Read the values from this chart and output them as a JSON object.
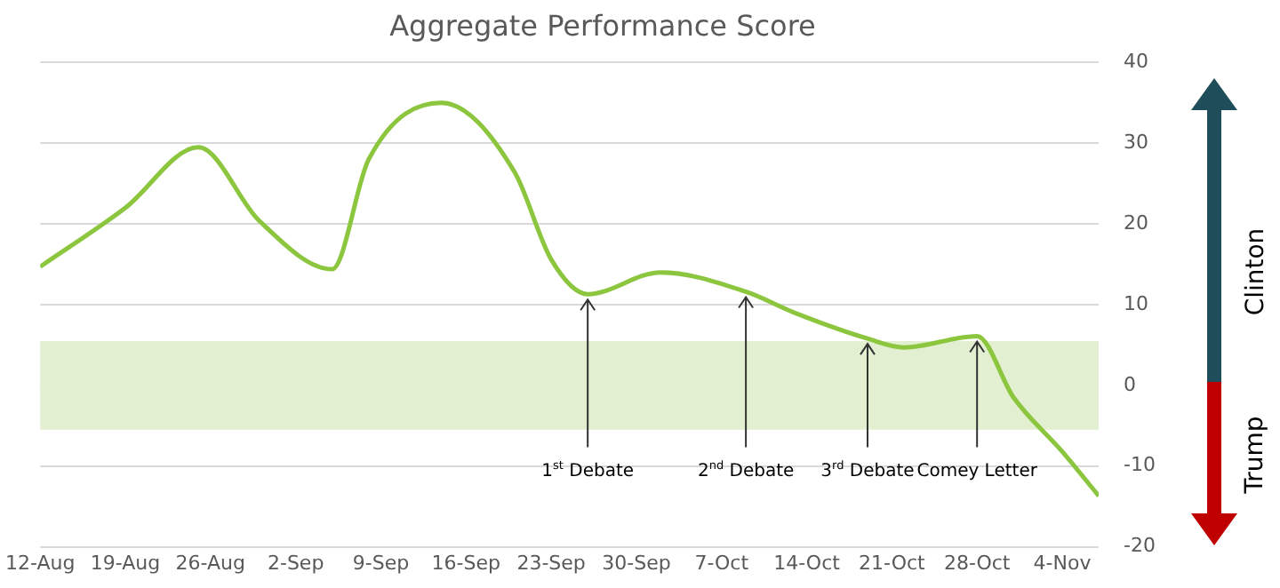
{
  "chart_data": {
    "type": "line",
    "title": "Aggregate Performance Score",
    "x": [
      "--08-12",
      "--08-19",
      "--08-25",
      "--08-30",
      "--09-05",
      "--09-08",
      "--09-14",
      "--09-20",
      "--09-23",
      "--09-26",
      "--10-02",
      "--10-09",
      "--10-13",
      "--10-19",
      "--10-22",
      "--10-28",
      "--10-31",
      "--11-04",
      "--11-07"
    ],
    "series": [
      {
        "color": "#8cc63f",
        "values": [
          14.7,
          22,
          29.5,
          20.4,
          14.4,
          28,
          35,
          26.4,
          15.6,
          11.3,
          14,
          11.6,
          9,
          5.8,
          4.7,
          6.1,
          -1.5,
          -8.2,
          -13.7
        ]
      }
    ],
    "xlim": [
      "--08-12",
      "--11-07"
    ],
    "xticks": [
      {
        "value": "--08-12",
        "label": "12-Aug"
      },
      {
        "value": "--08-19",
        "label": "19-Aug"
      },
      {
        "value": "--08-26",
        "label": "26-Aug"
      },
      {
        "value": "--09-02",
        "label": "2-Sep"
      },
      {
        "value": "--09-09",
        "label": "9-Sep"
      },
      {
        "value": "--09-16",
        "label": "16-Sep"
      },
      {
        "value": "--09-23",
        "label": "23-Sep"
      },
      {
        "value": "--09-30",
        "label": "30-Sep"
      },
      {
        "value": "--10-07",
        "label": "7-Oct"
      },
      {
        "value": "--10-14",
        "label": "14-Oct"
      },
      {
        "value": "--10-21",
        "label": "21-Oct"
      },
      {
        "value": "--10-28",
        "label": "28-Oct"
      },
      {
        "value": "--11-04",
        "label": "4-Nov"
      }
    ],
    "ylim": [
      -20,
      40
    ],
    "yticks": [
      -20,
      -10,
      0,
      10,
      20,
      30,
      40
    ],
    "grid": "y",
    "legend": false,
    "marker": "none",
    "line_style": "solid",
    "bands": [
      {
        "axis": "y",
        "from": -5.5,
        "to": 5.5,
        "color": "#e2efd0"
      }
    ],
    "annotations": [
      {
        "text": "1$^{st}$ Debate",
        "x": "--09-26",
        "y": 11.3
      },
      {
        "text": "2$^{nd}$ Debate",
        "x": "--10-09",
        "y": 11.6
      },
      {
        "text": "3$^{rd}$ Debate",
        "x": "--10-19",
        "y": 5.8
      },
      {
        "text": "Comey Letter",
        "x": "--10-28",
        "y": 6.1
      },
      "Clinton",
      "Trump"
    ]
  }
}
